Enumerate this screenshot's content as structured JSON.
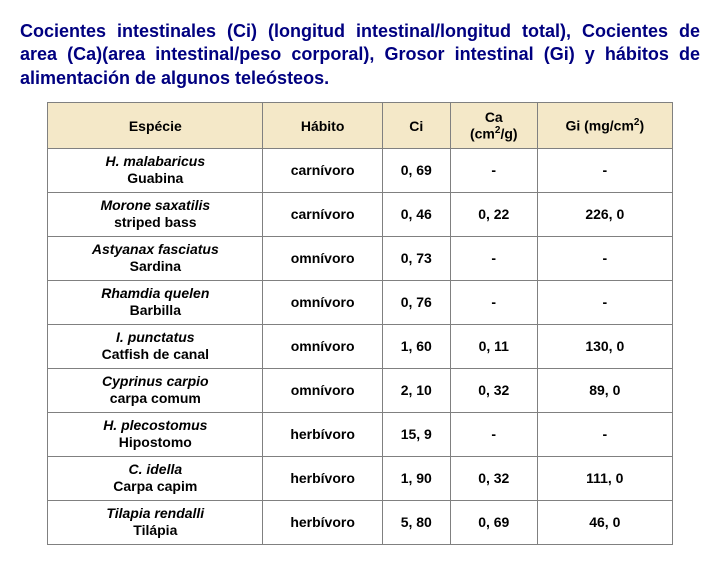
{
  "title_parts": {
    "p1": "Cocientes intestinales (Ci) (longitud intestinal/longitud total), Cocientes de area (Ca)(area intestinal/peso corporal), Grosor intestinal (Gi) y hábitos de alimentación de algunos teleósteos."
  },
  "headers": {
    "especie": "Espécie",
    "habito": "Hábito",
    "ci": "Ci",
    "ca_a": "Ca",
    "ca_b": "(cm",
    "ca_sup": "2",
    "ca_c": "/g)",
    "gi_a": "Gi (mg/cm",
    "gi_sup": "2",
    "gi_b": ")"
  },
  "rows": [
    {
      "sci": "H. malabaricus",
      "common": "Guabina",
      "habito": "carnívoro",
      "ci": "0, 69",
      "ca": "-",
      "gi": "-"
    },
    {
      "sci": "Morone saxatilis",
      "common": "striped bass",
      "habito": "carnívoro",
      "ci": "0, 46",
      "ca": "0, 22",
      "gi": "226, 0"
    },
    {
      "sci": "Astyanax fasciatus",
      "common": "Sardina",
      "habito": "omnívoro",
      "ci": "0, 73",
      "ca": "-",
      "gi": "-"
    },
    {
      "sci": "Rhamdia quelen",
      "common": "Barbilla",
      "habito": "omnívoro",
      "ci": "0, 76",
      "ca": "-",
      "gi": "-"
    },
    {
      "sci": "I. punctatus",
      "common": "Catfish de canal",
      "habito": "omnívoro",
      "ci": "1, 60",
      "ca": "0, 11",
      "gi": "130, 0"
    },
    {
      "sci": "Cyprinus carpio",
      "common": "carpa comum",
      "habito": "omnívoro",
      "ci": "2, 10",
      "ca": "0, 32",
      "gi": "89, 0"
    },
    {
      "sci": "H. plecostomus",
      "common": "Hipostomo",
      "habito": "herbívoro",
      "ci": "15, 9",
      "ca": "-",
      "gi": "-"
    },
    {
      "sci": "C. idella",
      "common": "Carpa capim",
      "habito": "herbívoro",
      "ci": "1, 90",
      "ca": "0, 32",
      "gi": "111, 0"
    },
    {
      "sci": "Tilapia rendalli",
      "common": "Tilápia",
      "habito": "herbívoro",
      "ci": "5, 80",
      "ca": "0, 69",
      "gi": "46, 0"
    }
  ],
  "colors": {
    "header_bg": "#f4e8c8",
    "title_color": "#000080",
    "border": "#808080"
  }
}
